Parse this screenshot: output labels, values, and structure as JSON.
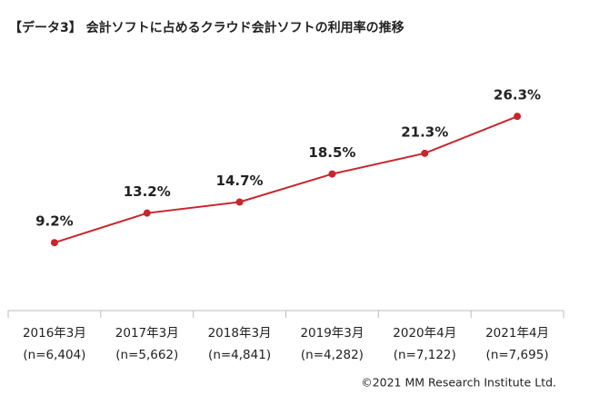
{
  "chart_data": {
    "type": "line",
    "title": "【データ3】 会計ソフトに占めるクラウド会計ソフトの利用率の推移",
    "categories": [
      "2016年3月",
      "2017年3月",
      "2018年3月",
      "2019年3月",
      "2020年4月",
      "2021年4月"
    ],
    "sample_sizes": [
      "(n=6,404)",
      "(n=5,662)",
      "(n=4,841)",
      "(n=4,282)",
      "(n=7,122)",
      "(n=7,695)"
    ],
    "values": [
      9.2,
      13.2,
      14.7,
      18.5,
      21.3,
      26.3
    ],
    "value_labels": [
      "9.2%",
      "13.2%",
      "14.7%",
      "18.5%",
      "21.3%",
      "26.3%"
    ],
    "color": "#c8252c",
    "credit": "©2021 MM Research Institute Ltd."
  }
}
